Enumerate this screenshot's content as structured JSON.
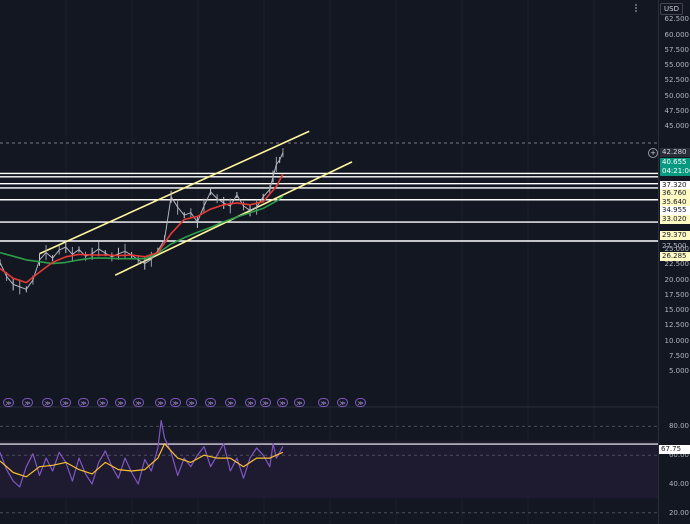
{
  "currency_selector": {
    "label": "USD"
  },
  "menu": {
    "icon": "dots-vertical-icon"
  },
  "price_axis": {
    "ticks": [
      "62.500",
      "60.000",
      "57.500",
      "55.000",
      "52.500",
      "50.000",
      "47.500",
      "45.000",
      "25.000",
      "22.500",
      "20.000",
      "17.500",
      "15.000",
      "12.500",
      "10.000",
      "7.500",
      "5.000"
    ],
    "labels": [
      {
        "text": "42.280",
        "style": "gray",
        "value": 42.28
      },
      {
        "text": "40.655",
        "style": "teal",
        "value": 40.655
      },
      {
        "text": "04:21:06",
        "style": "teal",
        "value": 40.655
      },
      {
        "text": "37.320",
        "style": "white",
        "value": 37.32
      },
      {
        "text": "36.760",
        "style": "yellow",
        "value": 36.76
      },
      {
        "text": "35.640",
        "style": "yellow",
        "value": 35.64
      },
      {
        "text": "34.955",
        "style": "white",
        "value": 34.955
      },
      {
        "text": "33.020",
        "style": "yellow",
        "value": 33.02
      },
      {
        "text": "29.370",
        "style": "yellow",
        "value": 29.37
      },
      {
        "text": "27.500",
        "style": "plain",
        "value": 27.5
      },
      {
        "text": "26.285",
        "style": "yellow",
        "value": 26.285
      }
    ]
  },
  "add_alert": {
    "icon": "plus-circle-icon"
  },
  "events": {
    "icon": "event-arrows-icon",
    "count": 20,
    "label": "≫"
  },
  "oscillator": {
    "ticks": [
      "80.00",
      "60.00",
      "40.00",
      "20.00"
    ],
    "value_label": "67.75"
  },
  "chart_data": {
    "type": "line",
    "main": {
      "ylim": [
        0,
        64
      ],
      "horizontal_levels": [
        37.32,
        36.76,
        35.64,
        34.955,
        33.02,
        29.37,
        26.285
      ],
      "dashed_level": 42.28,
      "channel_upper": [
        [
          0.06,
          24.2
        ],
        [
          0.47,
          44.2
        ]
      ],
      "channel_lower": [
        [
          0.175,
          20.7
        ],
        [
          0.535,
          39.2
        ]
      ],
      "price_series": [
        [
          0.0,
          22.8
        ],
        [
          0.01,
          20.5
        ],
        [
          0.02,
          19.2
        ],
        [
          0.03,
          18.8
        ],
        [
          0.04,
          18.4
        ],
        [
          0.05,
          19.9
        ],
        [
          0.06,
          23.2
        ],
        [
          0.07,
          24.4
        ],
        [
          0.08,
          23.5
        ],
        [
          0.09,
          24.8
        ],
        [
          0.1,
          25.3
        ],
        [
          0.11,
          24.1
        ],
        [
          0.12,
          24.9
        ],
        [
          0.13,
          23.8
        ],
        [
          0.14,
          24.2
        ],
        [
          0.15,
          25.0
        ],
        [
          0.16,
          24.3
        ],
        [
          0.17,
          23.7
        ],
        [
          0.18,
          24.2
        ],
        [
          0.19,
          24.6
        ],
        [
          0.2,
          24.0
        ],
        [
          0.21,
          23.2
        ],
        [
          0.22,
          22.6
        ],
        [
          0.23,
          23.3
        ],
        [
          0.24,
          24.7
        ],
        [
          0.25,
          26.5
        ],
        [
          0.26,
          33.5
        ],
        [
          0.27,
          31.8
        ],
        [
          0.28,
          30.5
        ],
        [
          0.29,
          30.9
        ],
        [
          0.3,
          29.4
        ],
        [
          0.31,
          32.0
        ],
        [
          0.32,
          34.3
        ],
        [
          0.33,
          33.2
        ],
        [
          0.34,
          32.5
        ],
        [
          0.35,
          32.0
        ],
        [
          0.36,
          33.8
        ],
        [
          0.37,
          32.0
        ],
        [
          0.38,
          31.3
        ],
        [
          0.39,
          31.8
        ],
        [
          0.4,
          33.5
        ],
        [
          0.41,
          34.7
        ],
        [
          0.415,
          36.8
        ],
        [
          0.42,
          38.8
        ],
        [
          0.425,
          39.5
        ],
        [
          0.43,
          40.7
        ]
      ],
      "ma_red": [
        [
          0.0,
          21.8
        ],
        [
          0.02,
          20.2
        ],
        [
          0.04,
          19.5
        ],
        [
          0.06,
          21.2
        ],
        [
          0.08,
          22.8
        ],
        [
          0.1,
          23.7
        ],
        [
          0.12,
          24.1
        ],
        [
          0.14,
          24.0
        ],
        [
          0.16,
          24.0
        ],
        [
          0.18,
          23.9
        ],
        [
          0.2,
          24.0
        ],
        [
          0.22,
          23.7
        ],
        [
          0.24,
          24.4
        ],
        [
          0.26,
          27.5
        ],
        [
          0.28,
          29.8
        ],
        [
          0.3,
          30.3
        ],
        [
          0.32,
          31.5
        ],
        [
          0.34,
          32.2
        ],
        [
          0.36,
          32.5
        ],
        [
          0.38,
          32.2
        ],
        [
          0.4,
          32.7
        ],
        [
          0.42,
          35.2
        ],
        [
          0.43,
          37.2
        ]
      ],
      "ma_green": [
        [
          0.0,
          24.4
        ],
        [
          0.02,
          23.8
        ],
        [
          0.04,
          23.2
        ],
        [
          0.06,
          22.9
        ],
        [
          0.08,
          22.6
        ],
        [
          0.1,
          22.8
        ],
        [
          0.12,
          23.2
        ],
        [
          0.14,
          23.5
        ],
        [
          0.16,
          23.5
        ],
        [
          0.18,
          23.4
        ],
        [
          0.2,
          23.4
        ],
        [
          0.22,
          23.4
        ],
        [
          0.24,
          24.3
        ],
        [
          0.26,
          25.8
        ],
        [
          0.28,
          26.8
        ],
        [
          0.3,
          27.7
        ],
        [
          0.32,
          28.5
        ],
        [
          0.34,
          29.4
        ],
        [
          0.36,
          30.2
        ],
        [
          0.38,
          30.9
        ],
        [
          0.4,
          31.6
        ],
        [
          0.42,
          32.8
        ],
        [
          0.43,
          33.6
        ]
      ]
    },
    "oscillator": {
      "ylim": [
        15,
        90
      ],
      "band": [
        30,
        70
      ],
      "levels": [
        20,
        60,
        67.75,
        80
      ],
      "values": [
        [
          0.0,
          62
        ],
        [
          0.01,
          50
        ],
        [
          0.02,
          42
        ],
        [
          0.03,
          38
        ],
        [
          0.04,
          52
        ],
        [
          0.05,
          61
        ],
        [
          0.06,
          46
        ],
        [
          0.07,
          58
        ],
        [
          0.08,
          49
        ],
        [
          0.09,
          62
        ],
        [
          0.1,
          55
        ],
        [
          0.11,
          42
        ],
        [
          0.12,
          58
        ],
        [
          0.13,
          47
        ],
        [
          0.14,
          40
        ],
        [
          0.15,
          55
        ],
        [
          0.16,
          63
        ],
        [
          0.17,
          52
        ],
        [
          0.18,
          44
        ],
        [
          0.19,
          58
        ],
        [
          0.2,
          48
        ],
        [
          0.21,
          40
        ],
        [
          0.22,
          57
        ],
        [
          0.23,
          49
        ],
        [
          0.24,
          65
        ],
        [
          0.245,
          84
        ],
        [
          0.25,
          72
        ],
        [
          0.26,
          62
        ],
        [
          0.27,
          46
        ],
        [
          0.28,
          58
        ],
        [
          0.29,
          52
        ],
        [
          0.3,
          60
        ],
        [
          0.31,
          66
        ],
        [
          0.32,
          52
        ],
        [
          0.33,
          60
        ],
        [
          0.34,
          68
        ],
        [
          0.35,
          49
        ],
        [
          0.36,
          58
        ],
        [
          0.37,
          44
        ],
        [
          0.38,
          58
        ],
        [
          0.39,
          65
        ],
        [
          0.4,
          60
        ],
        [
          0.41,
          52
        ],
        [
          0.415,
          68
        ],
        [
          0.42,
          58
        ],
        [
          0.43,
          66
        ]
      ],
      "signal": [
        [
          0.0,
          56
        ],
        [
          0.02,
          48
        ],
        [
          0.04,
          45
        ],
        [
          0.06,
          52
        ],
        [
          0.08,
          53
        ],
        [
          0.1,
          55
        ],
        [
          0.12,
          50
        ],
        [
          0.14,
          47
        ],
        [
          0.16,
          55
        ],
        [
          0.18,
          50
        ],
        [
          0.2,
          49
        ],
        [
          0.22,
          50
        ],
        [
          0.24,
          58
        ],
        [
          0.25,
          68
        ],
        [
          0.27,
          58
        ],
        [
          0.29,
          55
        ],
        [
          0.31,
          60
        ],
        [
          0.33,
          58
        ],
        [
          0.35,
          58
        ],
        [
          0.37,
          52
        ],
        [
          0.39,
          58
        ],
        [
          0.41,
          58
        ],
        [
          0.43,
          62
        ]
      ]
    }
  }
}
